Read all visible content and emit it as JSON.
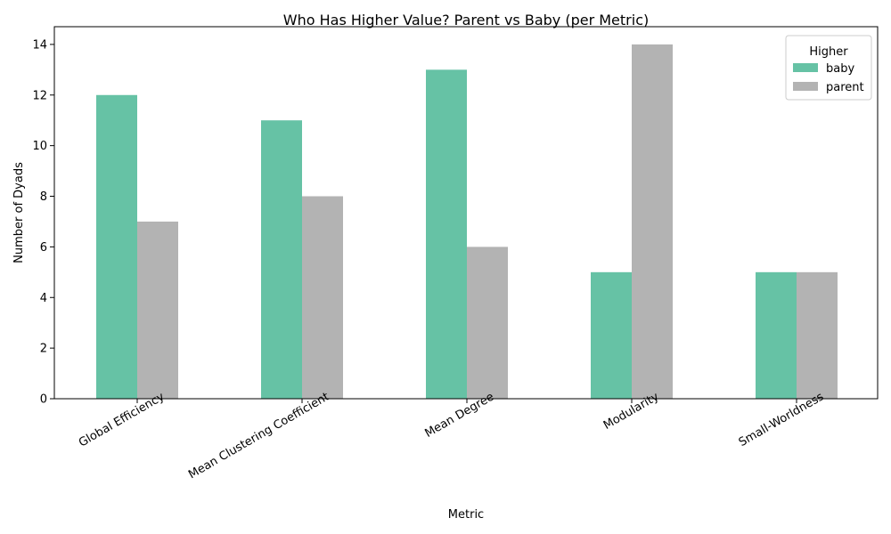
{
  "chart_data": {
    "type": "bar",
    "title": "Who Has Higher Value? Parent vs Baby (per Metric)",
    "xlabel": "Metric",
    "ylabel": "Number of Dyads",
    "categories": [
      "Global Efficiency",
      "Mean Clustering Coefficient",
      "Mean Degree",
      "Modularity",
      "Small-Worldness"
    ],
    "series": [
      {
        "name": "baby",
        "color": "#66c2a5",
        "values": [
          12,
          11,
          13,
          5,
          5
        ]
      },
      {
        "name": "parent",
        "color": "#b3b3b3",
        "values": [
          7,
          8,
          6,
          14,
          5
        ]
      }
    ],
    "ylim": [
      0,
      14.7
    ],
    "yticks": [
      0,
      2,
      4,
      6,
      8,
      10,
      12,
      14
    ],
    "grid": false,
    "legend": {
      "title": "Higher",
      "placement": "top-right"
    }
  }
}
